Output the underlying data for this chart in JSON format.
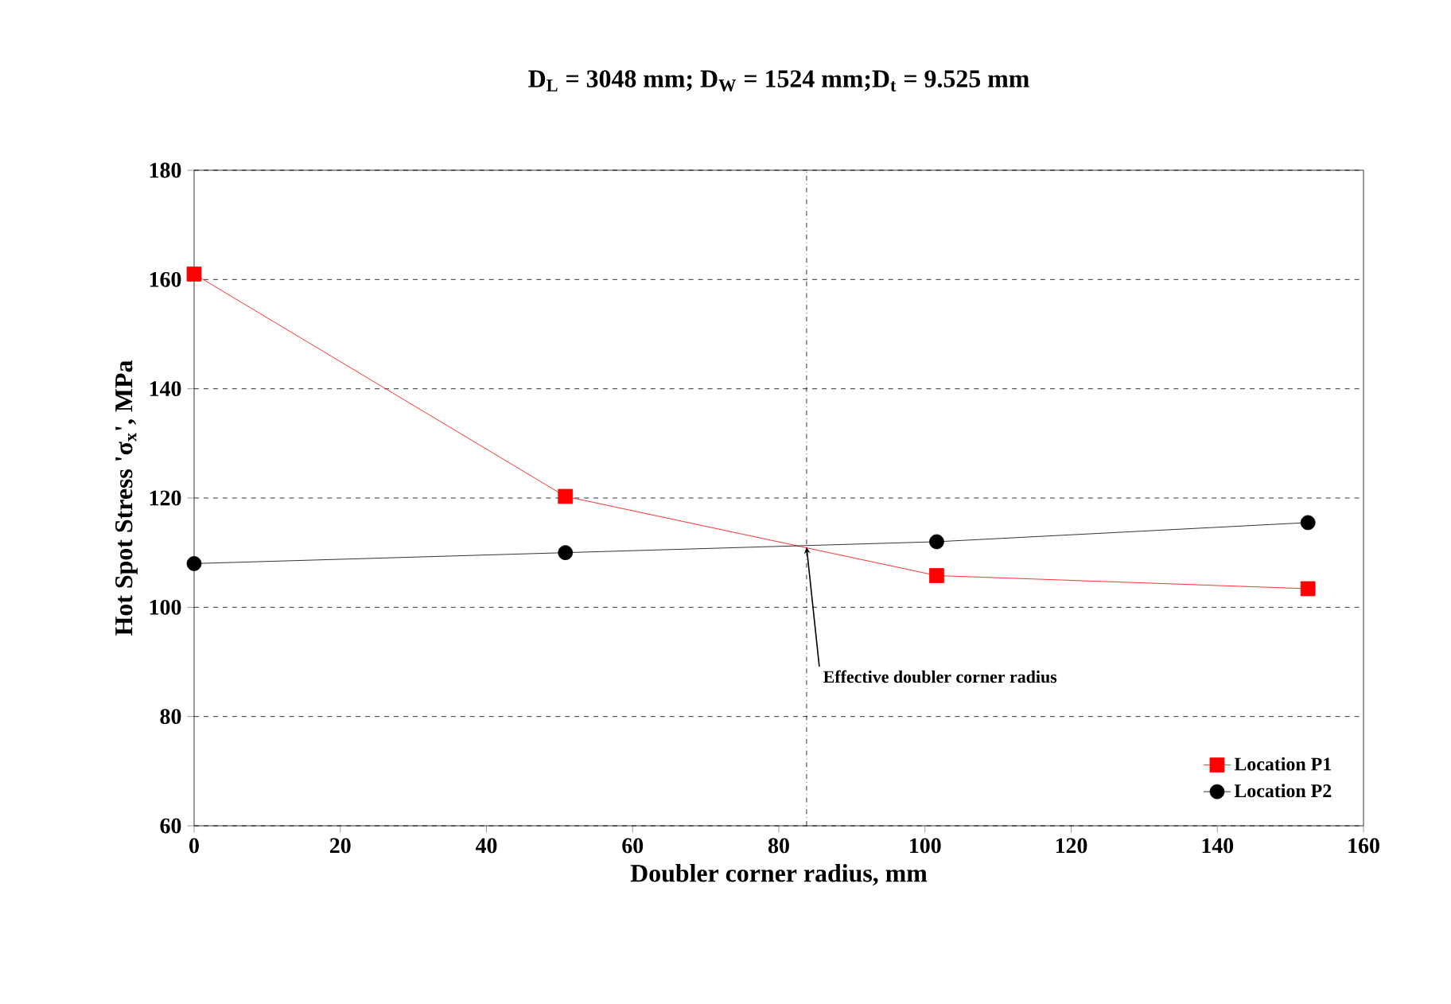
{
  "chart_data": {
    "type": "line",
    "title": "D$_{L}$ = 3048 mm; D$_{W}$ = 1524 mm;D$_{t}$ = 9.525 mm",
    "xlabel": "Doubler corner radius, mm",
    "ylabel": "Hot Spot Stress 'σ$_{x}$', MPa",
    "x": [
      0,
      50.8,
      101.6,
      152.4
    ],
    "series": [
      {
        "name": "Location P1",
        "color": "#ff0000",
        "marker": "square",
        "values": [
          161,
          120.3,
          105.8,
          103.4
        ]
      },
      {
        "name": "Location P2",
        "color": "#000000",
        "marker": "circle",
        "values": [
          108,
          110,
          112,
          115.5
        ]
      }
    ],
    "xlim": [
      0,
      160
    ],
    "xticks": [
      0,
      20,
      40,
      60,
      80,
      100,
      120,
      140,
      160
    ],
    "ylim": [
      60,
      180
    ],
    "yticks": [
      60,
      80,
      100,
      120,
      140,
      160,
      180
    ],
    "grid": "y",
    "legend": "bottom right",
    "line_style": "solid",
    "ref_lines": [
      {
        "axis": "x",
        "value": 83.8,
        "color": "#000000",
        "line_style": "dashdot"
      }
    ],
    "annotations": [
      {
        "text": "Effective doubler corner radius",
        "x": 83.8,
        "y": 111
      }
    ]
  }
}
